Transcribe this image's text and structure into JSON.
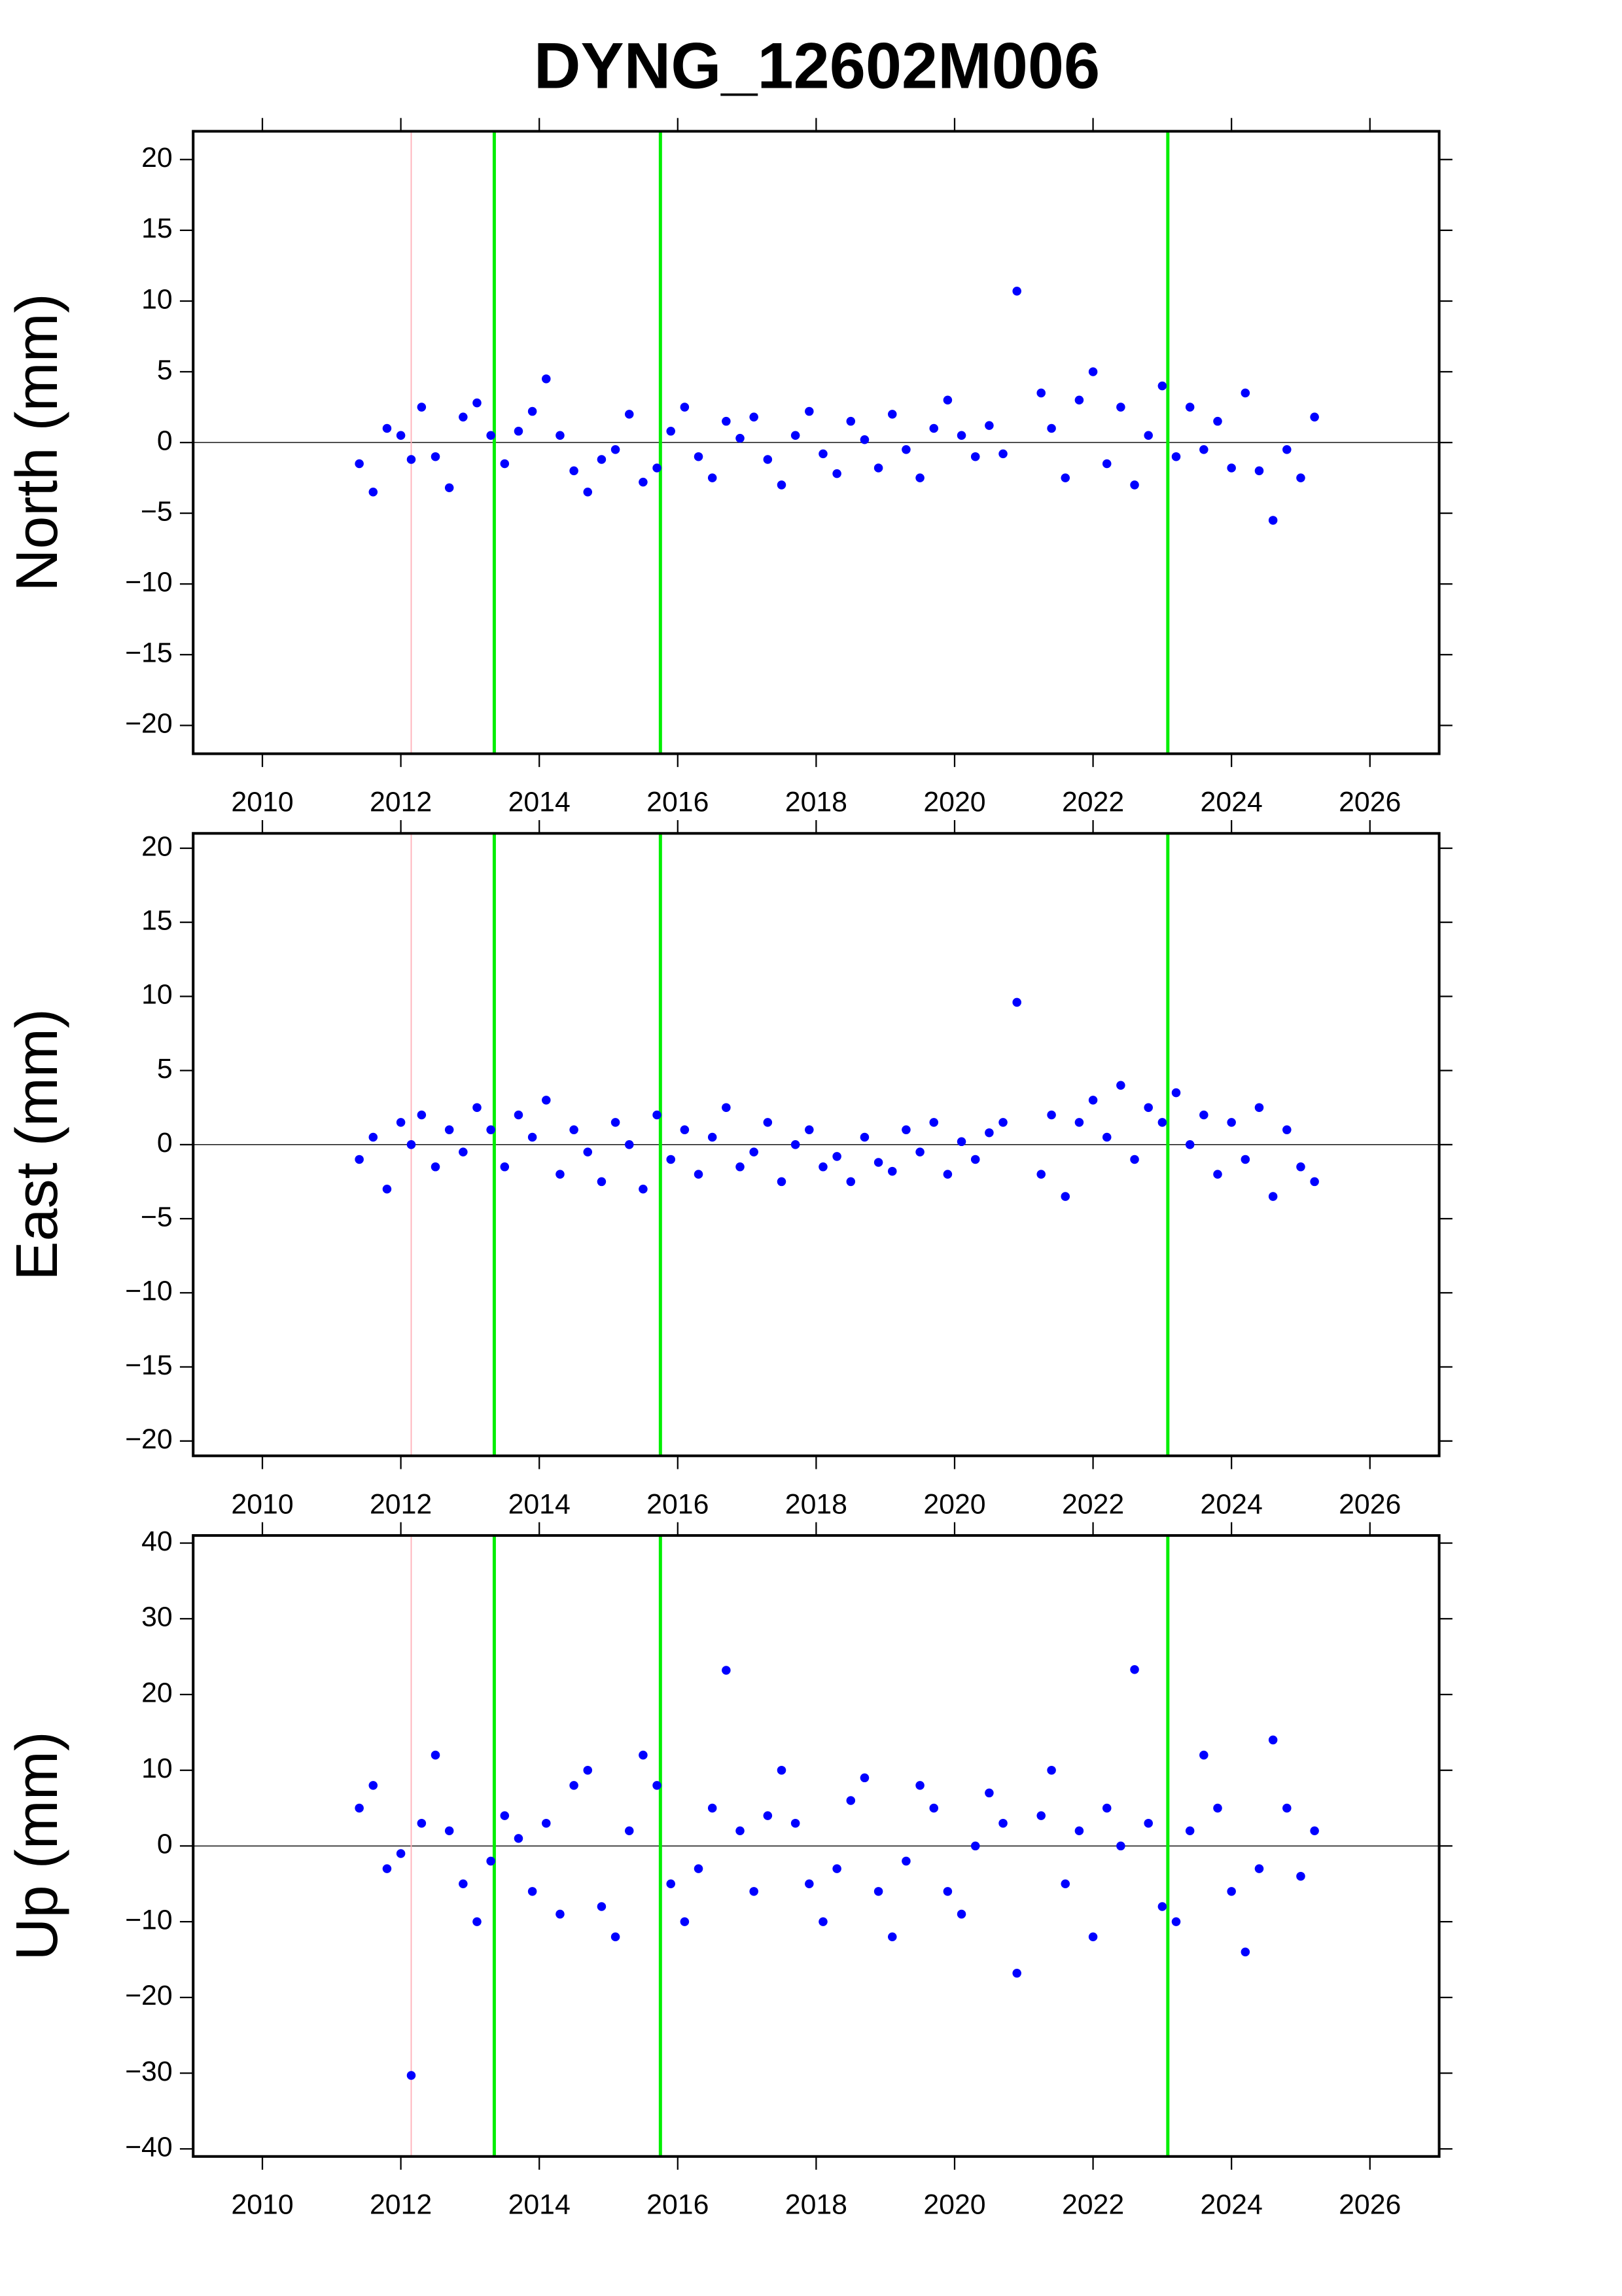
{
  "title": "DYNG_12602M006",
  "chart_data": [
    {
      "type": "scatter",
      "ylabel": "North (mm)",
      "color": "#0000ff",
      "x": [
        2011.4,
        2011.6,
        2011.8,
        2012.0,
        2012.15,
        2012.3,
        2012.5,
        2012.7,
        2012.9,
        2013.1,
        2013.3,
        2013.5,
        2013.7,
        2013.9,
        2014.1,
        2014.3,
        2014.5,
        2014.7,
        2014.9,
        2015.1,
        2015.3,
        2015.5,
        2015.7,
        2015.9,
        2016.1,
        2016.3,
        2016.5,
        2016.7,
        2016.9,
        2017.1,
        2017.3,
        2017.5,
        2017.7,
        2017.9,
        2018.1,
        2018.3,
        2018.5,
        2018.7,
        2018.9,
        2019.1,
        2019.3,
        2019.5,
        2019.7,
        2019.9,
        2020.1,
        2020.3,
        2020.5,
        2020.7,
        2020.9,
        2021.25,
        2021.4,
        2021.6,
        2021.8,
        2022.0,
        2022.2,
        2022.4,
        2022.6,
        2022.8,
        2023.0,
        2023.2,
        2023.4,
        2023.6,
        2023.8,
        2024.0,
        2024.2,
        2024.4,
        2024.6,
        2024.8,
        2025.0,
        2025.2
      ],
      "values": [
        -1.5,
        -3.5,
        1.0,
        0.5,
        -1.2,
        2.5,
        -1.0,
        -3.2,
        1.8,
        2.8,
        0.5,
        -1.5,
        0.8,
        2.2,
        4.5,
        0.5,
        -2.0,
        -3.5,
        -1.2,
        -0.5,
        2.0,
        -2.8,
        -1.8,
        0.8,
        2.5,
        -1.0,
        -2.5,
        1.5,
        0.3,
        1.8,
        -1.2,
        -3.0,
        0.5,
        2.2,
        -0.8,
        -2.2,
        1.5,
        0.2,
        -1.8,
        2.0,
        -0.5,
        -2.5,
        1.0,
        3.0,
        0.5,
        -1.0,
        1.2,
        -0.8,
        10.7,
        3.5,
        1.0,
        -2.5,
        3.0,
        5.0,
        -1.5,
        2.5,
        -3.0,
        0.5,
        4.0,
        -1.0,
        2.5,
        -0.5,
        1.5,
        -1.8,
        3.5,
        -2.0,
        -5.5,
        -0.5,
        -2.5,
        1.8
      ],
      "xlim": [
        2009,
        2027
      ],
      "xticks": [
        2010,
        2012,
        2014,
        2016,
        2018,
        2020,
        2022,
        2024,
        2026
      ],
      "ylim": [
        -22,
        22
      ],
      "yticks": [
        {
          "value": -20,
          "label": "−20"
        },
        {
          "value": -15,
          "label": "−15"
        },
        {
          "value": -10,
          "label": "−10"
        },
        {
          "value": -5,
          "label": "−5"
        },
        0,
        5,
        10,
        15,
        20
      ],
      "hline": 0,
      "vlines": [
        {
          "x": 2012.15,
          "color": "#ffb0b8"
        },
        {
          "x": 2013.35,
          "color": "#00ee00"
        },
        {
          "x": 2015.75,
          "color": "#00ee00"
        },
        {
          "x": 2023.08,
          "color": "#00ee00"
        }
      ]
    },
    {
      "type": "scatter",
      "ylabel": "East (mm)",
      "color": "#0000ff",
      "x": [
        2011.4,
        2011.6,
        2011.8,
        2012.0,
        2012.15,
        2012.3,
        2012.5,
        2012.7,
        2012.9,
        2013.1,
        2013.3,
        2013.5,
        2013.7,
        2013.9,
        2014.1,
        2014.3,
        2014.5,
        2014.7,
        2014.9,
        2015.1,
        2015.3,
        2015.5,
        2015.7,
        2015.9,
        2016.1,
        2016.3,
        2016.5,
        2016.7,
        2016.9,
        2017.1,
        2017.3,
        2017.5,
        2017.7,
        2017.9,
        2018.1,
        2018.3,
        2018.5,
        2018.7,
        2018.9,
        2019.1,
        2019.3,
        2019.5,
        2019.7,
        2019.9,
        2020.1,
        2020.3,
        2020.5,
        2020.7,
        2020.9,
        2021.25,
        2021.4,
        2021.6,
        2021.8,
        2022.0,
        2022.2,
        2022.4,
        2022.6,
        2022.8,
        2023.0,
        2023.2,
        2023.4,
        2023.6,
        2023.8,
        2024.0,
        2024.2,
        2024.4,
        2024.6,
        2024.8,
        2025.0,
        2025.2
      ],
      "values": [
        -1.0,
        0.5,
        -3.0,
        1.5,
        0.0,
        2.0,
        -1.5,
        1.0,
        -0.5,
        2.5,
        1.0,
        -1.5,
        2.0,
        0.5,
        3.0,
        -2.0,
        1.0,
        -0.5,
        -2.5,
        1.5,
        0.0,
        -3.0,
        2.0,
        -1.0,
        1.0,
        -2.0,
        0.5,
        2.5,
        -1.5,
        -0.5,
        1.5,
        -2.5,
        0.0,
        1.0,
        -1.5,
        -0.8,
        -2.5,
        0.5,
        -1.2,
        -1.8,
        1.0,
        -0.5,
        1.5,
        -2.0,
        0.2,
        -1.0,
        0.8,
        1.5,
        9.6,
        -2.0,
        2.0,
        -3.5,
        1.5,
        3.0,
        0.5,
        4.0,
        -1.0,
        2.5,
        1.5,
        3.5,
        0.0,
        2.0,
        -2.0,
        1.5,
        -1.0,
        2.5,
        -3.5,
        1.0,
        -1.5,
        -2.5
      ],
      "xlim": [
        2009,
        2027
      ],
      "xticks": [
        2010,
        2012,
        2014,
        2016,
        2018,
        2020,
        2022,
        2024,
        2026
      ],
      "ylim": [
        -21,
        21
      ],
      "yticks": [
        {
          "value": -20,
          "label": "−20"
        },
        {
          "value": -15,
          "label": "−15"
        },
        {
          "value": -10,
          "label": "−10"
        },
        {
          "value": -5,
          "label": "−5"
        },
        0,
        5,
        10,
        15,
        20
      ],
      "hline": 0,
      "vlines": [
        {
          "x": 2012.15,
          "color": "#ffb0b8"
        },
        {
          "x": 2013.35,
          "color": "#00ee00"
        },
        {
          "x": 2015.75,
          "color": "#00ee00"
        },
        {
          "x": 2023.08,
          "color": "#00ee00"
        }
      ]
    },
    {
      "type": "scatter",
      "ylabel": "Up (mm)",
      "color": "#0000ff",
      "x": [
        2011.4,
        2011.6,
        2011.8,
        2012.0,
        2012.15,
        2012.3,
        2012.5,
        2012.7,
        2012.9,
        2013.1,
        2013.3,
        2013.5,
        2013.7,
        2013.9,
        2014.1,
        2014.3,
        2014.5,
        2014.7,
        2014.9,
        2015.1,
        2015.3,
        2015.5,
        2015.7,
        2015.9,
        2016.1,
        2016.3,
        2016.5,
        2016.7,
        2016.9,
        2017.1,
        2017.3,
        2017.5,
        2017.7,
        2017.9,
        2018.1,
        2018.3,
        2018.5,
        2018.7,
        2018.9,
        2019.1,
        2019.3,
        2019.5,
        2019.7,
        2019.9,
        2020.1,
        2020.3,
        2020.5,
        2020.7,
        2020.9,
        2021.25,
        2021.4,
        2021.6,
        2021.8,
        2022.0,
        2022.2,
        2022.4,
        2022.6,
        2022.8,
        2023.0,
        2023.2,
        2023.4,
        2023.6,
        2023.8,
        2024.0,
        2024.2,
        2024.4,
        2024.6,
        2024.8,
        2025.0,
        2025.2
      ],
      "values": [
        5,
        8,
        -3,
        -1,
        -30.3,
        3,
        12,
        2,
        -5,
        -10,
        -2,
        4,
        1,
        -6,
        3,
        -9,
        8,
        10,
        -8,
        -12,
        2,
        12,
        8,
        -5,
        -10,
        -3,
        5,
        23.2,
        2,
        -6,
        4,
        10,
        3,
        -5,
        -10,
        -3,
        6,
        9,
        -6,
        -12,
        -2,
        8,
        5,
        -6,
        -9,
        0,
        7,
        3,
        -16.8,
        4,
        10,
        -5,
        2,
        -12,
        5,
        0,
        23.3,
        3,
        -8,
        -10,
        2,
        12,
        5,
        -6,
        -14,
        -3,
        14,
        5,
        -4,
        2
      ],
      "xlim": [
        2009,
        2027
      ],
      "xticks": [
        2010,
        2012,
        2014,
        2016,
        2018,
        2020,
        2022,
        2024,
        2026
      ],
      "ylim": [
        -41,
        41
      ],
      "yticks": [
        {
          "value": -40,
          "label": "−40"
        },
        {
          "value": -30,
          "label": "−30"
        },
        {
          "value": -20,
          "label": "−20"
        },
        {
          "value": -10,
          "label": "−10"
        },
        0,
        10,
        20,
        30,
        40
      ],
      "hline": 0,
      "vlines": [
        {
          "x": 2012.15,
          "color": "#ffb0b8"
        },
        {
          "x": 2013.35,
          "color": "#00ee00"
        },
        {
          "x": 2015.75,
          "color": "#00ee00"
        },
        {
          "x": 2023.08,
          "color": "#00ee00"
        }
      ]
    }
  ]
}
